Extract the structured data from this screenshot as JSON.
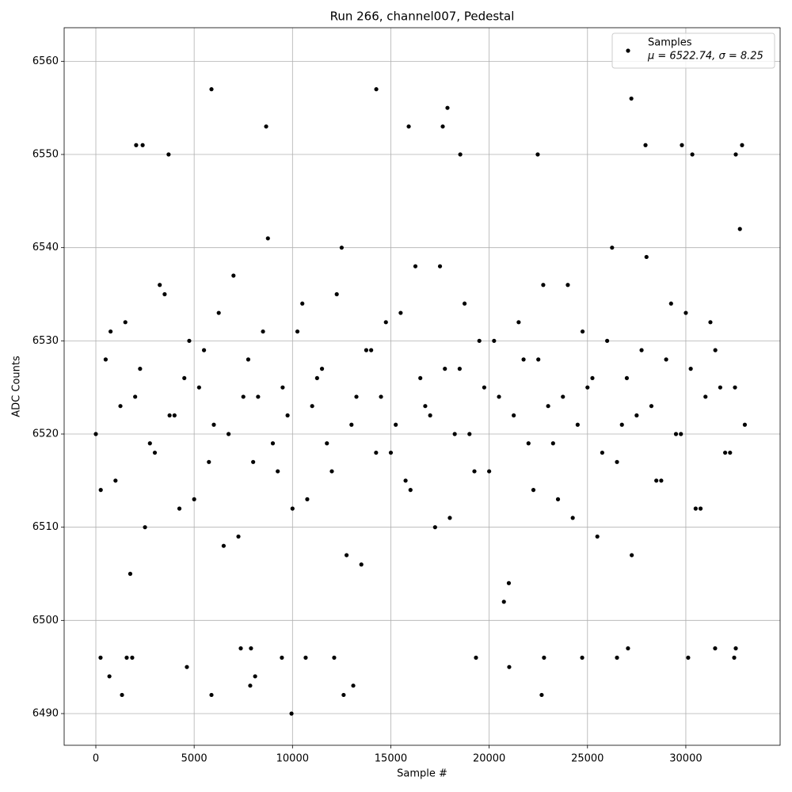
{
  "chart_data": {
    "type": "scatter",
    "title": "Run 266, channel007, Pedestal",
    "x_label": "Sample #",
    "y_label": "ADC Counts",
    "xlim": [
      -1611,
      34795
    ],
    "ylim": [
      6486.6,
      6563.6
    ],
    "xticks": [
      0,
      5000,
      10000,
      15000,
      20000,
      25000,
      30000
    ],
    "yticks": [
      6490,
      6500,
      6510,
      6520,
      6530,
      6540,
      6550,
      6560
    ],
    "grid": true,
    "legend_position": "upper right",
    "series": [
      {
        "name": "Samples",
        "legend_subtext": "μ = 6522.74, σ = 8.25",
        "color": "#000000",
        "x": [
          0,
          500,
          1000,
          1500,
          2000,
          2500,
          3000,
          3500,
          4000,
          4500,
          5000,
          5500,
          6000,
          6500,
          7000,
          7500,
          8000,
          8500,
          9000,
          9500,
          10000,
          10500,
          11000,
          11500,
          12000,
          12500,
          13000,
          13500,
          14000,
          14500,
          15000,
          15500,
          16000,
          16500,
          17000,
          17500,
          18000,
          18500,
          19000,
          19500,
          20000,
          20500,
          21000,
          21500,
          22000,
          22500,
          23000,
          23500,
          24000,
          24500,
          25000,
          25500,
          26000,
          26500,
          27000,
          27500,
          28000,
          28500,
          29000,
          29500,
          30000,
          30500,
          31000,
          31500,
          32000,
          32500,
          33000,
          250,
          750,
          1250,
          1750,
          2250,
          2750,
          3250,
          3750,
          4250,
          4750,
          5250,
          5750,
          6250,
          6750,
          7250,
          7750,
          8250,
          8750,
          9250,
          9750,
          10250,
          10750,
          11250,
          11750,
          12250,
          12750,
          13250,
          13750,
          14250,
          14750,
          15250,
          15750,
          16250,
          16750,
          17250,
          17750,
          18250,
          18750,
          19250,
          19750,
          20250,
          20750,
          21250,
          21750,
          22250,
          22750,
          23250,
          23750,
          24250,
          24750,
          25250,
          25750,
          26250,
          26750,
          27250,
          27750,
          28250,
          28750,
          29250,
          29750,
          30250,
          30750,
          31250,
          31750,
          32250,
          32750,
          9950,
          5880,
          1330,
          12600,
          22670,
          5880,
          14260,
          27230,
          17880,
          8660,
          15910,
          17640,
          2050,
          2380,
          27950,
          29800,
          32860,
          3700,
          18530,
          22470,
          30330,
          32540,
          690,
          8100,
          7850,
          13090,
          4630,
          21020,
          240,
          1570,
          1850,
          9460,
          10670,
          12120,
          19330,
          24730,
          26500,
          30120,
          32460,
          22790,
          7370,
          7890,
          27060,
          31490,
          32540
        ],
        "values": [
          6520,
          6528,
          6515,
          6532,
          6524,
          6510,
          6518,
          6535,
          6522,
          6526,
          6513,
          6529,
          6521,
          6508,
          6537,
          6524,
          6517,
          6531,
          6519,
          6525,
          6512,
          6534,
          6523,
          6527,
          6516,
          6540,
          6521,
          6506,
          6529,
          6524,
          6518,
          6533,
          6514,
          6526,
          6522,
          6538,
          6511,
          6527,
          6520,
          6530,
          6516,
          6524,
          6504,
          6532,
          6519,
          6528,
          6523,
          6513,
          6536,
          6521,
          6525,
          6509,
          6530,
          6517,
          6526,
          6522,
          6539,
          6515,
          6528,
          6520,
          6533,
          6512,
          6524,
          6529,
          6518,
          6525,
          6521,
          6514,
          6531,
          6523,
          6505,
          6527,
          6519,
          6536,
          6522,
          6512,
          6530,
          6525,
          6517,
          6533,
          6520,
          6509,
          6528,
          6524,
          6541,
          6516,
          6522,
          6531,
          6513,
          6526,
          6519,
          6535,
          6507,
          6524,
          6529,
          6518,
          6532,
          6521,
          6515,
          6538,
          6523,
          6510,
          6527,
          6520,
          6534,
          6516,
          6525,
          6530,
          6502,
          6522,
          6528,
          6514,
          6536,
          6519,
          6524,
          6511,
          6531,
          6526,
          6518,
          6540,
          6521,
          6507,
          6529,
          6523,
          6515,
          6534,
          6520,
          6527,
          6512,
          6532,
          6525,
          6518,
          6542,
          6490,
          6492,
          6492,
          6492,
          6492,
          6557,
          6557,
          6556,
          6555,
          6553,
          6553,
          6553,
          6551,
          6551,
          6551,
          6551,
          6551,
          6550,
          6550,
          6550,
          6550,
          6550,
          6494,
          6494,
          6493,
          6493,
          6495,
          6495,
          6496,
          6496,
          6496,
          6496,
          6496,
          6496,
          6496,
          6496,
          6496,
          6496,
          6496,
          6496,
          6497,
          6497,
          6497,
          6497,
          6497
        ]
      }
    ]
  }
}
